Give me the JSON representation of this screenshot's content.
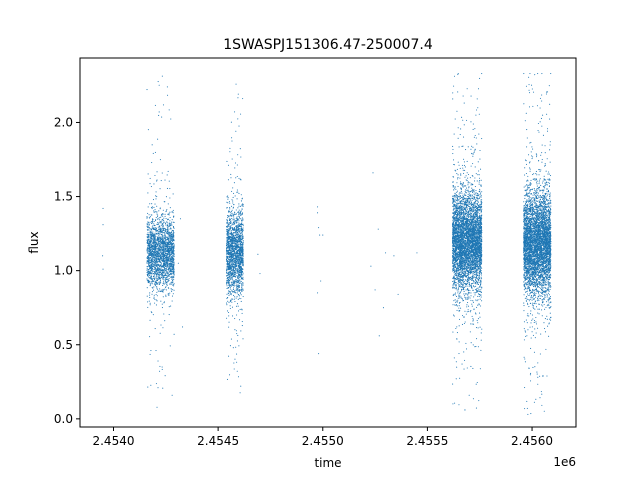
{
  "chart_data": {
    "type": "scatter",
    "title": "1SWASPJ151306.47-250007.4",
    "xlabel": "time",
    "ylabel": "flux",
    "x_offset_label": "1e6",
    "xlim": [
      2453840,
      2456210
    ],
    "ylim": [
      -0.055,
      2.435
    ],
    "x_ticks": [
      2454000,
      2454500,
      2455000,
      2455500,
      2456000
    ],
    "x_tick_labels": [
      "2.4540",
      "2.4545",
      "2.4550",
      "2.4555",
      "2.4560"
    ],
    "y_ticks": [
      0.0,
      0.5,
      1.0,
      1.5,
      2.0
    ],
    "y_tick_labels": [
      "0.0",
      "0.5",
      "1.0",
      "1.5",
      "2.0"
    ],
    "grid": false,
    "marker_color": "#1f77b4",
    "clusters": [
      {
        "x_start": 2454160,
        "x_end": 2454290,
        "flux_center": 1.12,
        "flux_spread": 0.12,
        "flux_min": 0.07,
        "flux_max": 2.33,
        "points": 2200
      },
      {
        "x_start": 2454540,
        "x_end": 2454620,
        "flux_center": 1.12,
        "flux_spread": 0.14,
        "flux_min": 0.15,
        "flux_max": 2.31,
        "points": 1800
      },
      {
        "x_start": 2455620,
        "x_end": 2455760,
        "flux_center": 1.2,
        "flux_spread": 0.16,
        "flux_min": 0.06,
        "flux_max": 2.33,
        "points": 4600
      },
      {
        "x_start": 2455960,
        "x_end": 2456090,
        "flux_center": 1.18,
        "flux_spread": 0.17,
        "flux_min": 0.03,
        "flux_max": 2.33,
        "points": 4600
      }
    ],
    "isolated_points": [
      {
        "x": 2453950,
        "y": 1.42
      },
      {
        "x": 2453950,
        "y": 1.31
      },
      {
        "x": 2453950,
        "y": 1.01
      },
      {
        "x": 2453948,
        "y": 1.1
      },
      {
        "x": 2454330,
        "y": 0.62
      },
      {
        "x": 2454320,
        "y": 1.35
      },
      {
        "x": 2454310,
        "y": 1.05
      },
      {
        "x": 2454690,
        "y": 1.11
      },
      {
        "x": 2454700,
        "y": 0.98
      },
      {
        "x": 2454975,
        "y": 1.43
      },
      {
        "x": 2454975,
        "y": 1.39
      },
      {
        "x": 2454980,
        "y": 1.29
      },
      {
        "x": 2454985,
        "y": 1.24
      },
      {
        "x": 2454980,
        "y": 0.44
      },
      {
        "x": 2454975,
        "y": 0.85
      },
      {
        "x": 2454990,
        "y": 0.93
      },
      {
        "x": 2455000,
        "y": 1.24
      },
      {
        "x": 2455240,
        "y": 1.66
      },
      {
        "x": 2455265,
        "y": 1.28
      },
      {
        "x": 2455230,
        "y": 1.03
      },
      {
        "x": 2455250,
        "y": 0.87
      },
      {
        "x": 2455270,
        "y": 0.56
      },
      {
        "x": 2455300,
        "y": 1.12
      },
      {
        "x": 2455340,
        "y": 1.1
      },
      {
        "x": 2455290,
        "y": 0.75
      },
      {
        "x": 2455360,
        "y": 0.84
      },
      {
        "x": 2455450,
        "y": 1.12
      }
    ]
  }
}
